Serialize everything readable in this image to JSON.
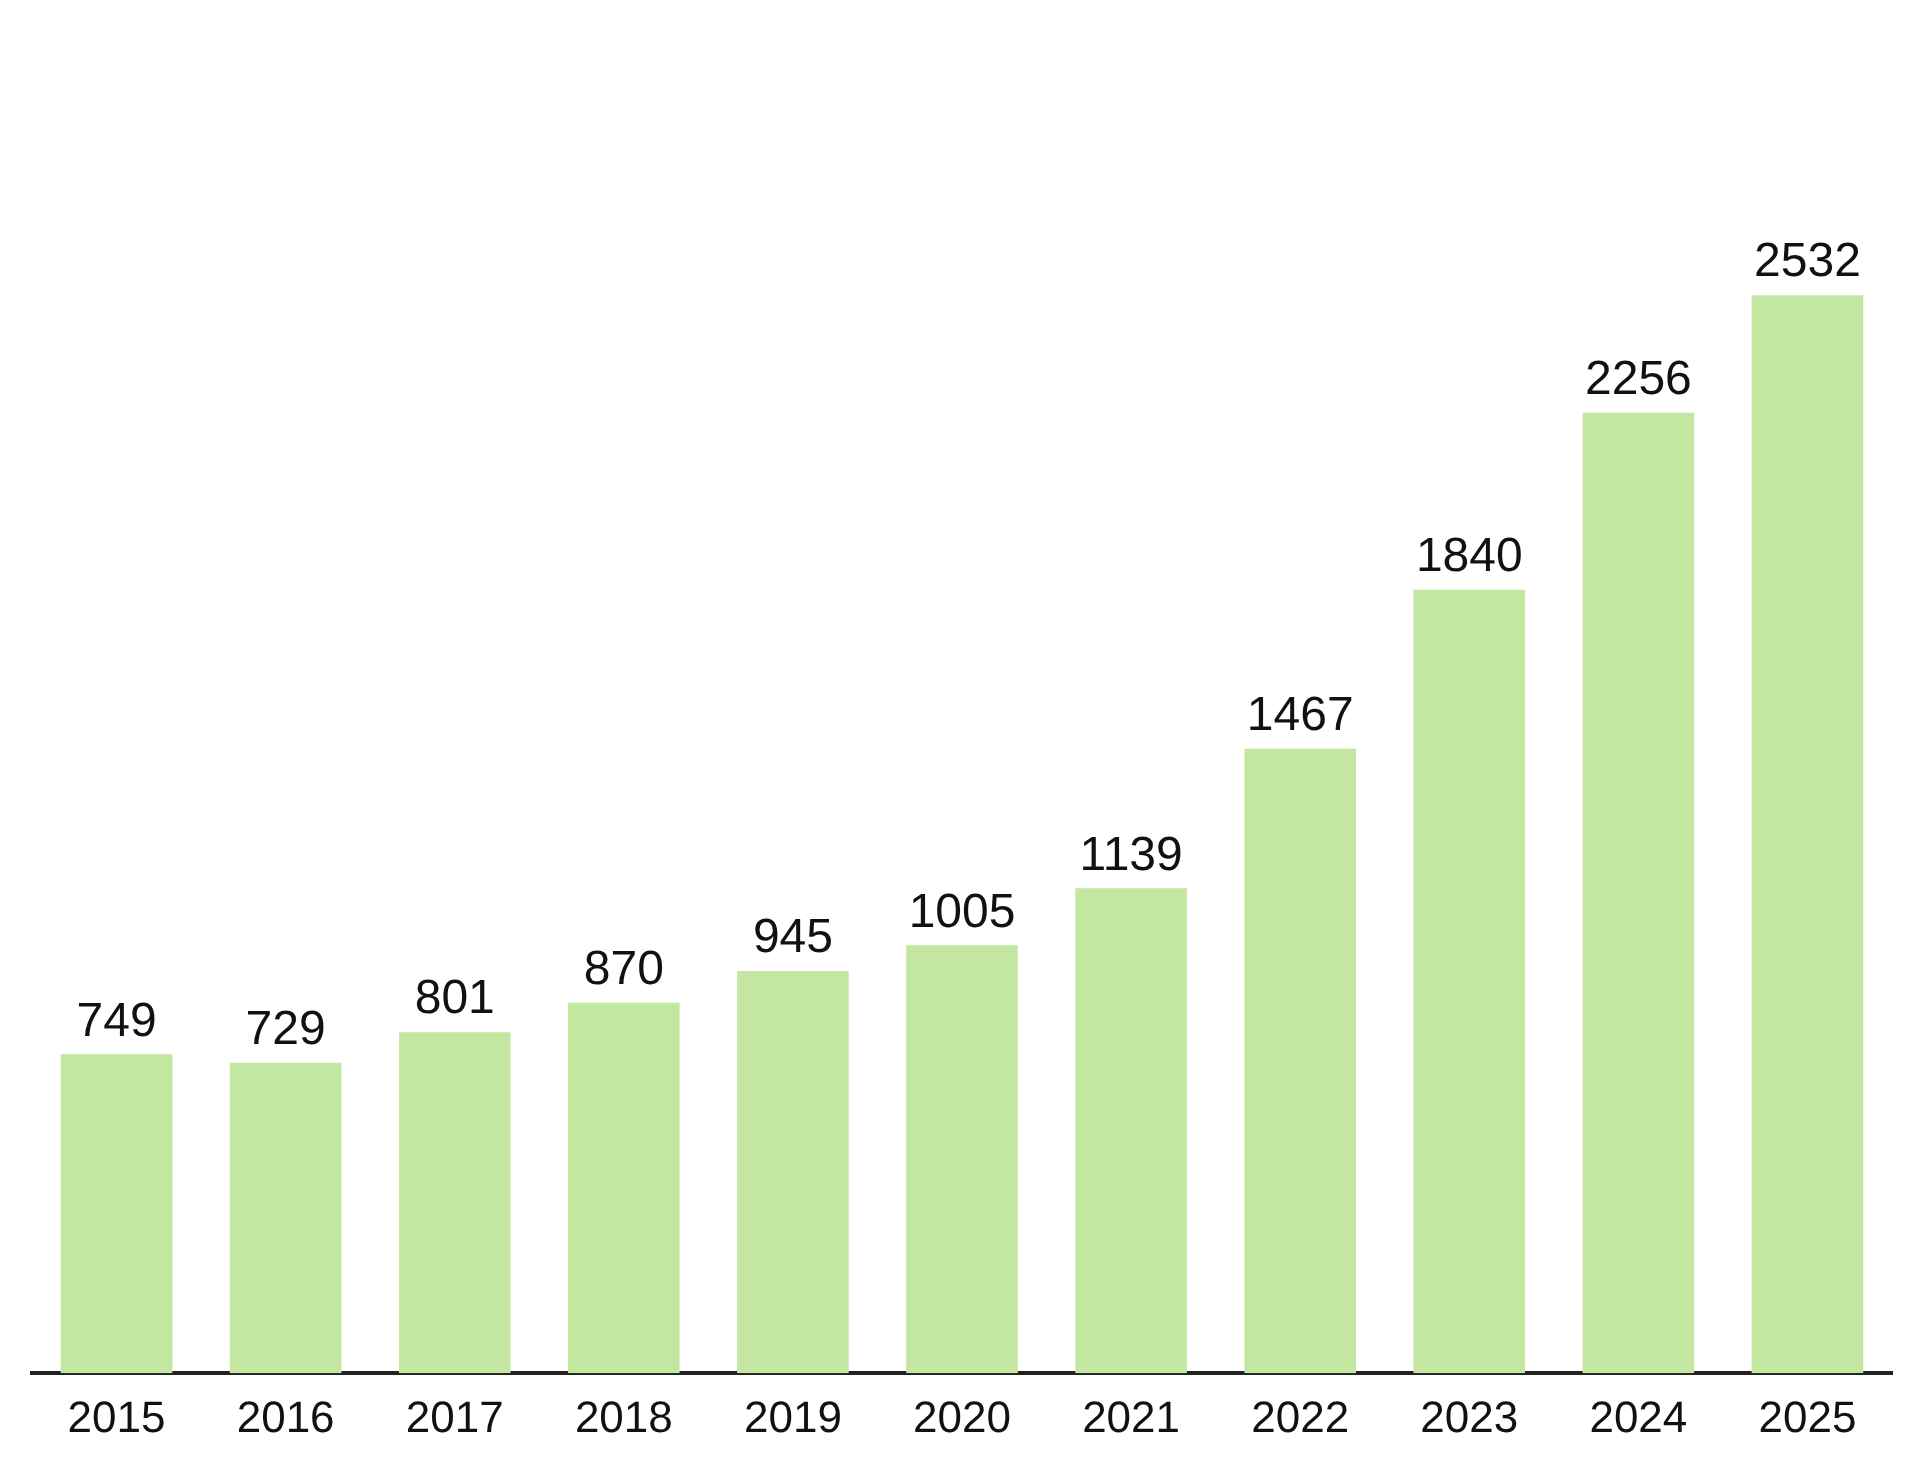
{
  "chart_data": {
    "type": "bar",
    "categories": [
      "2015",
      "2016",
      "2017",
      "2018",
      "2019",
      "2020",
      "2021",
      "2022",
      "2023",
      "2024",
      "2025"
    ],
    "values": [
      749,
      729,
      801,
      870,
      945,
      1005,
      1139,
      1467,
      1840,
      2256,
      2532
    ],
    "color": "#c3e6a0",
    "data_labels": true,
    "grid": false,
    "legend": false
  }
}
